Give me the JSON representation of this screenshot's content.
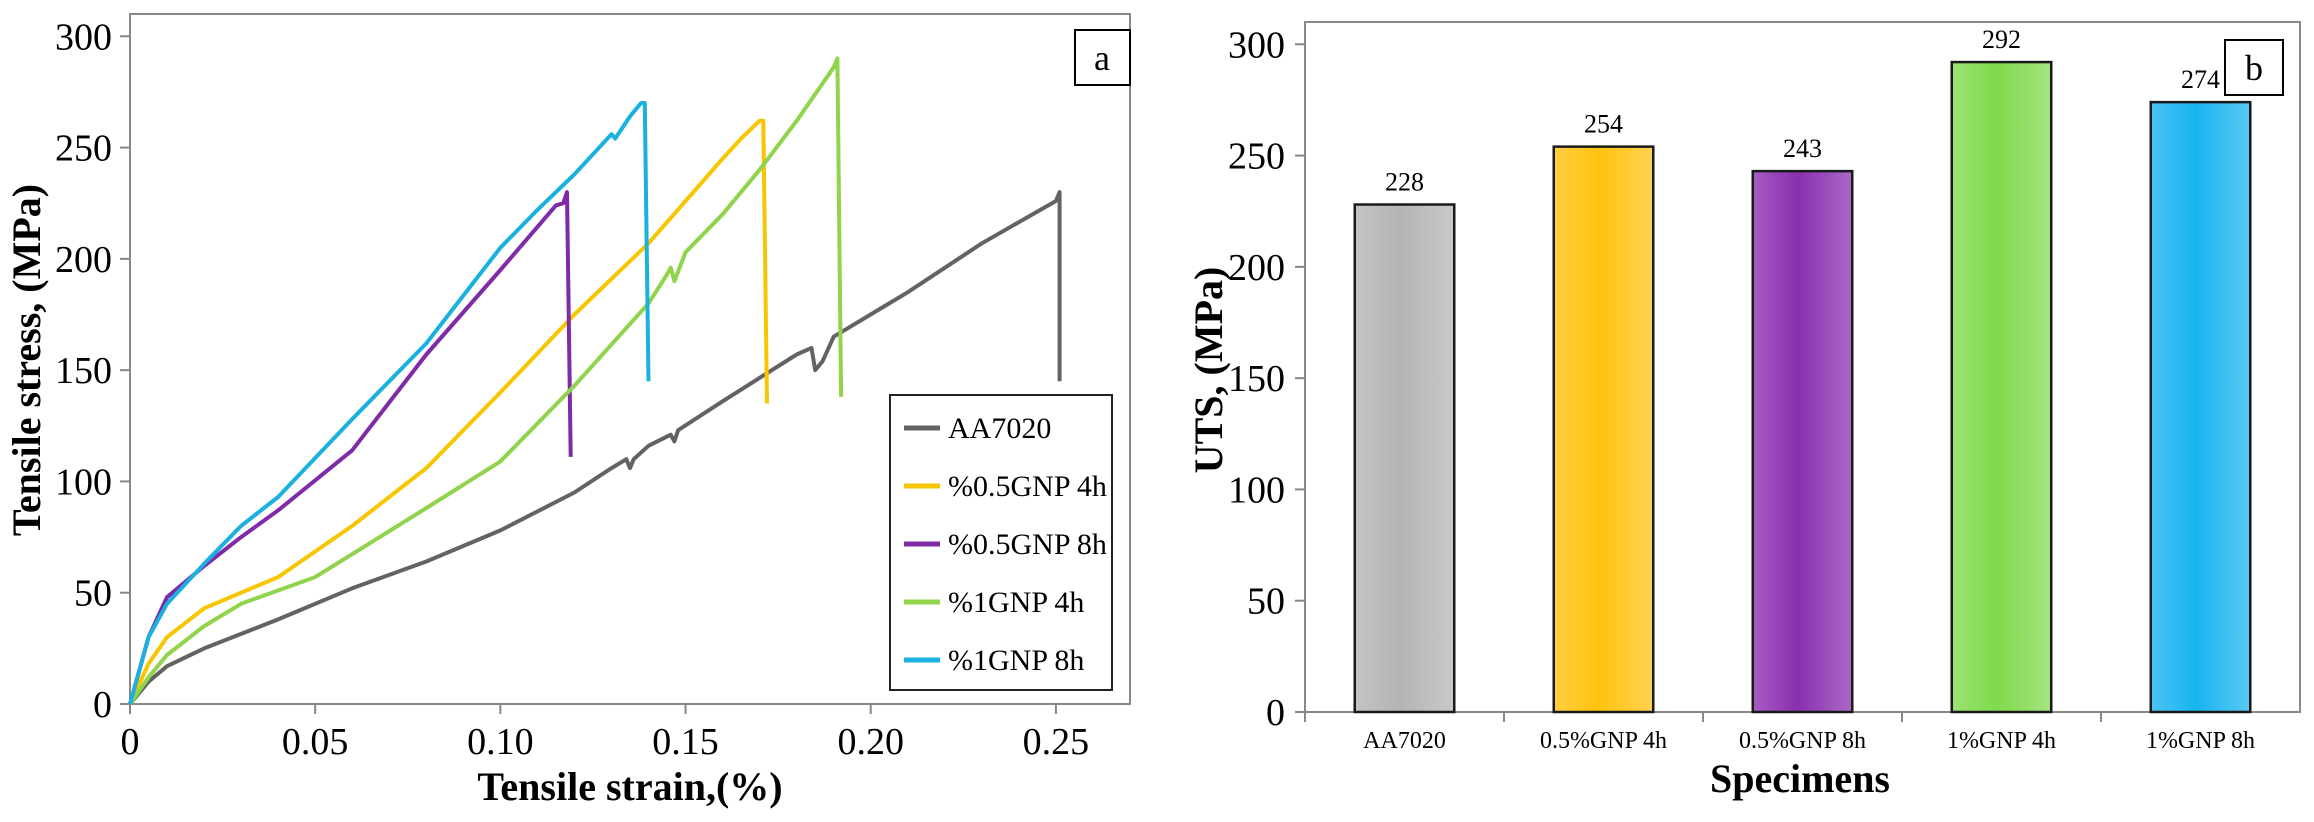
{
  "chart_data": [
    {
      "type": "line",
      "panel_label": "a",
      "xlabel": "Tensile strain,(%)",
      "ylabel": "Tensile stress, (MPa)",
      "xlim": [
        0,
        0.27
      ],
      "ylim": [
        0,
        310
      ],
      "x_ticks": [
        {
          "value": 0,
          "label": "0"
        },
        {
          "value": 0.05,
          "label": "0.05"
        },
        {
          "value": 0.1,
          "label": "0.10"
        },
        {
          "value": 0.15,
          "label": "0.15"
        },
        {
          "value": 0.2,
          "label": "0.20"
        },
        {
          "value": 0.25,
          "label": "0.25"
        }
      ],
      "y_ticks": [
        {
          "value": 0,
          "label": "0"
        },
        {
          "value": 50,
          "label": "50"
        },
        {
          "value": 100,
          "label": "100"
        },
        {
          "value": 150,
          "label": "150"
        },
        {
          "value": 200,
          "label": "200"
        },
        {
          "value": 250,
          "label": "250"
        },
        {
          "value": 300,
          "label": "300"
        }
      ],
      "legend_position": "lower-right",
      "series": [
        {
          "name": "AA7020",
          "color": "#636363",
          "points": [
            [
              0,
              0
            ],
            [
              0.005,
              10
            ],
            [
              0.01,
              17
            ],
            [
              0.02,
              25
            ],
            [
              0.04,
              38
            ],
            [
              0.06,
              52
            ],
            [
              0.08,
              64
            ],
            [
              0.1,
              78
            ],
            [
              0.12,
              95
            ],
            [
              0.13,
              106
            ],
            [
              0.134,
              110
            ],
            [
              0.135,
              106
            ],
            [
              0.136,
              110
            ],
            [
              0.14,
              116
            ],
            [
              0.146,
              121
            ],
            [
              0.147,
              118
            ],
            [
              0.148,
              123
            ],
            [
              0.16,
              136
            ],
            [
              0.18,
              157
            ],
            [
              0.184,
              160
            ],
            [
              0.185,
              150
            ],
            [
              0.187,
              154
            ],
            [
              0.19,
              165
            ],
            [
              0.21,
              185
            ],
            [
              0.23,
              207
            ],
            [
              0.25,
              226
            ],
            [
              0.251,
              230
            ],
            [
              0.251,
              145
            ]
          ]
        },
        {
          "name": "%0.5GNP 4h",
          "color": "#f7c600",
          "points": [
            [
              0,
              0
            ],
            [
              0.005,
              18
            ],
            [
              0.01,
              30
            ],
            [
              0.02,
              43
            ],
            [
              0.04,
              57
            ],
            [
              0.06,
              80
            ],
            [
              0.08,
              106
            ],
            [
              0.1,
              140
            ],
            [
              0.12,
              175
            ],
            [
              0.14,
              207
            ],
            [
              0.16,
              245
            ],
            [
              0.165,
              254
            ],
            [
              0.17,
              262
            ],
            [
              0.171,
              262
            ],
            [
              0.172,
              135
            ]
          ]
        },
        {
          "name": "%0.5GNP 8h",
          "color": "#7f2aa6",
          "points": [
            [
              0,
              0
            ],
            [
              0.005,
              30
            ],
            [
              0.01,
              48
            ],
            [
              0.02,
              62
            ],
            [
              0.03,
              75
            ],
            [
              0.04,
              87
            ],
            [
              0.06,
              114
            ],
            [
              0.08,
              157
            ],
            [
              0.1,
              195
            ],
            [
              0.115,
              224
            ],
            [
              0.117,
              225
            ],
            [
              0.118,
              230
            ],
            [
              0.119,
              111
            ]
          ]
        },
        {
          "name": "%1GNP 4h",
          "color": "#8fd44a",
          "points": [
            [
              0,
              0
            ],
            [
              0.005,
              12
            ],
            [
              0.01,
              22
            ],
            [
              0.02,
              35
            ],
            [
              0.03,
              45
            ],
            [
              0.05,
              57
            ],
            [
              0.08,
              88
            ],
            [
              0.1,
              109
            ],
            [
              0.12,
              143
            ],
            [
              0.14,
              180
            ],
            [
              0.145,
              193
            ],
            [
              0.146,
              196
            ],
            [
              0.147,
              190
            ],
            [
              0.15,
              203
            ],
            [
              0.16,
              220
            ],
            [
              0.17,
              240
            ],
            [
              0.18,
              262
            ],
            [
              0.19,
              286
            ],
            [
              0.191,
              290
            ],
            [
              0.192,
              138
            ]
          ]
        },
        {
          "name": "%1GNP 8h",
          "color": "#1ab0e0",
          "points": [
            [
              0,
              0
            ],
            [
              0.005,
              30
            ],
            [
              0.01,
              45
            ],
            [
              0.02,
              63
            ],
            [
              0.03,
              80
            ],
            [
              0.04,
              93
            ],
            [
              0.06,
              128
            ],
            [
              0.08,
              162
            ],
            [
              0.1,
              205
            ],
            [
              0.11,
              222
            ],
            [
              0.12,
              238
            ],
            [
              0.13,
              256
            ],
            [
              0.131,
              254
            ],
            [
              0.135,
              264
            ],
            [
              0.138,
              270
            ],
            [
              0.139,
              270
            ],
            [
              0.14,
              145
            ]
          ]
        }
      ]
    },
    {
      "type": "bar",
      "panel_label": "b",
      "xlabel": "Specimens",
      "ylabel": "UTS, (MPa)",
      "ylim": [
        0,
        310
      ],
      "y_ticks": [
        {
          "value": 0,
          "label": "0"
        },
        {
          "value": 50,
          "label": "50"
        },
        {
          "value": 100,
          "label": "100"
        },
        {
          "value": 150,
          "label": "150"
        },
        {
          "value": 200,
          "label": "200"
        },
        {
          "value": 250,
          "label": "250"
        },
        {
          "value": 300,
          "label": "300"
        }
      ],
      "categories": [
        "AA7020",
        "0.5%GNP 4h",
        "0.5%GNP 8h",
        "1%GNP 4h",
        "1%GNP 8h"
      ],
      "values": [
        228,
        254,
        243,
        292,
        274
      ],
      "data_labels": [
        "228",
        "254",
        "243",
        "292",
        "274"
      ],
      "bar_colors": [
        "#b4b4b4",
        "#ffc20e",
        "#8a2fb0",
        "#7fda4c",
        "#19b4f0"
      ]
    }
  ]
}
